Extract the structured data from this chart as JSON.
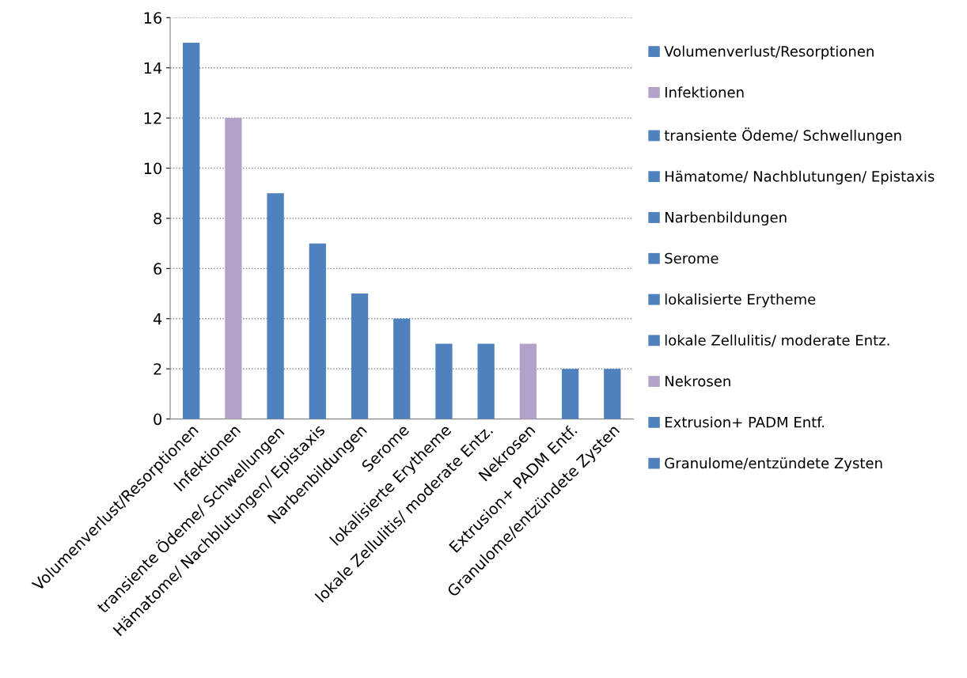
{
  "chart_data": {
    "type": "bar",
    "categories": [
      "Volumenverlust/Resorptionen",
      "Infektionen",
      "transiente Ödeme/ Schwellungen",
      "Hämatome/ Nachblutungen/ Epistaxis",
      "Narbenbildungen",
      "Serome",
      "lokalisierte Erytheme",
      "lokale Zellulitis/ moderate Entz.",
      "Nekrosen",
      "Extrusion+ PADM Entf.",
      "Granulome/entzündete Zysten"
    ],
    "series": [
      {
        "name": "Volumenverlust/Resorptionen",
        "color": "#4f81bd",
        "values": [
          15,
          null,
          null,
          null,
          null,
          null,
          null,
          null,
          null,
          null,
          null
        ]
      },
      {
        "name": "Infektionen",
        "color": "#b3a2c7",
        "values": [
          null,
          12,
          null,
          null,
          null,
          null,
          null,
          null,
          null,
          null,
          null
        ]
      },
      {
        "name": "transiente Ödeme/ Schwellungen",
        "color": "#4f81bd",
        "values": [
          null,
          null,
          9,
          null,
          null,
          null,
          null,
          null,
          null,
          null,
          null
        ]
      },
      {
        "name": "Hämatome/ Nachblutungen/ Epistaxis",
        "color": "#4f81bd",
        "values": [
          null,
          null,
          null,
          7,
          null,
          null,
          null,
          null,
          null,
          null,
          null
        ]
      },
      {
        "name": "Narbenbildungen",
        "color": "#4f81bd",
        "values": [
          null,
          null,
          null,
          null,
          5,
          null,
          null,
          null,
          null,
          null,
          null
        ]
      },
      {
        "name": "Serome",
        "color": "#4f81bd",
        "values": [
          null,
          null,
          null,
          null,
          null,
          4,
          null,
          null,
          null,
          null,
          null
        ]
      },
      {
        "name": "lokalisierte Erytheme",
        "color": "#4f81bd",
        "values": [
          null,
          null,
          null,
          null,
          null,
          null,
          3,
          null,
          null,
          null,
          null
        ]
      },
      {
        "name": "lokale Zellulitis/ moderate Entz.",
        "color": "#4f81bd",
        "values": [
          null,
          null,
          null,
          null,
          null,
          null,
          null,
          3,
          null,
          null,
          null
        ]
      },
      {
        "name": "Nekrosen",
        "color": "#b3a2c7",
        "values": [
          null,
          null,
          null,
          null,
          null,
          null,
          null,
          null,
          3,
          null,
          null
        ]
      },
      {
        "name": "Extrusion+ PADM Entf.",
        "color": "#4f81bd",
        "values": [
          null,
          null,
          null,
          null,
          null,
          null,
          null,
          null,
          null,
          2,
          null
        ]
      },
      {
        "name": "Granulome/entzündete Zysten",
        "color": "#4f81bd",
        "values": [
          null,
          null,
          null,
          null,
          null,
          null,
          null,
          null,
          null,
          null,
          2
        ]
      }
    ],
    "ylim": [
      0,
      16
    ],
    "yticks": [
      0,
      2,
      4,
      6,
      8,
      10,
      12,
      14,
      16
    ],
    "grid": "y",
    "legend": "right"
  }
}
